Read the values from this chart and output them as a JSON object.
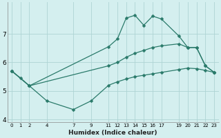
{
  "xlabel": "Humidex (Indice chaleur)",
  "bg_color": "#d4efef",
  "grid_color": "#aed4d4",
  "line_color": "#2a7a6a",
  "line1_x": [
    0,
    1,
    2,
    11,
    12,
    13,
    14,
    15,
    16,
    17,
    19,
    20,
    21,
    22,
    23
  ],
  "line1_y": [
    5.7,
    5.45,
    5.18,
    6.55,
    6.82,
    7.55,
    7.65,
    7.3,
    7.62,
    7.52,
    6.92,
    6.52,
    6.52,
    5.88,
    5.65
  ],
  "line2_x": [
    0,
    2,
    11,
    12,
    13,
    14,
    15,
    16,
    17,
    19,
    20,
    21,
    22,
    23
  ],
  "line2_y": [
    5.7,
    5.18,
    5.88,
    6.0,
    6.18,
    6.32,
    6.42,
    6.52,
    6.58,
    6.65,
    6.52,
    6.52,
    5.88,
    5.65
  ],
  "line3_x": [
    0,
    2,
    4,
    7,
    9,
    11,
    12,
    13,
    14,
    15,
    16,
    17,
    19,
    20,
    21,
    22,
    23
  ],
  "line3_y": [
    5.7,
    5.18,
    4.65,
    4.35,
    4.65,
    5.2,
    5.32,
    5.42,
    5.5,
    5.55,
    5.6,
    5.65,
    5.75,
    5.8,
    5.78,
    5.72,
    5.65
  ],
  "xlim": [
    -0.5,
    23.5
  ],
  "ylim": [
    3.9,
    8.1
  ],
  "yticks": [
    4,
    5,
    6,
    7
  ],
  "xticks": [
    0,
    1,
    2,
    4,
    7,
    9,
    11,
    12,
    13,
    14,
    15,
    16,
    17,
    19,
    20,
    21,
    22,
    23
  ],
  "xtick_labels": [
    "0",
    "1",
    "2",
    "4",
    "7",
    "9",
    "11",
    "12",
    "13",
    "14",
    "15",
    "16",
    "17",
    "19",
    "20",
    "21",
    "22",
    "23"
  ]
}
